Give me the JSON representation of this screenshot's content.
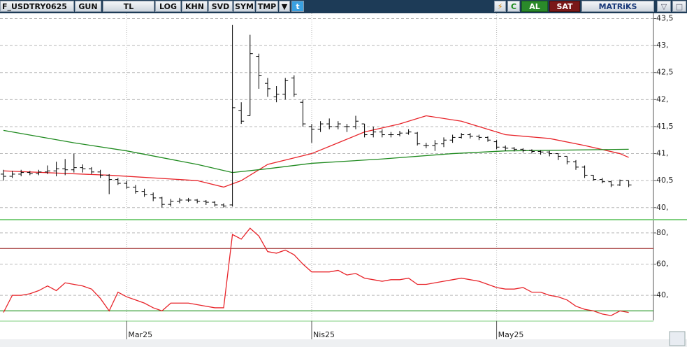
{
  "toolbar": {
    "symbol": "F_USDTRY0625",
    "period": "GUN",
    "currency": "TL",
    "buttons": [
      "LOG",
      "KHN",
      "SVD",
      "SYM",
      "TMP"
    ],
    "refresh": "C",
    "buy": "AL",
    "sell": "SAT",
    "brand": "MATRiKS"
  },
  "chart_data": [
    {
      "type": "ohlc",
      "grid": true,
      "ylim": [
        39.79,
        43.61
      ],
      "yticks": [
        {
          "value": 43.5,
          "label": "43,5"
        },
        {
          "value": 43,
          "label": "43,"
        },
        {
          "value": 42.5,
          "label": "42,5"
        },
        {
          "value": 42,
          "label": "42,"
        },
        {
          "value": 41.5,
          "label": "41,5"
        },
        {
          "value": 41,
          "label": "41,"
        },
        {
          "value": 40.5,
          "label": "40,5"
        },
        {
          "value": 40,
          "label": "40,"
        }
      ],
      "color": "#000000",
      "open": [
        40.62,
        40.58,
        40.62,
        40.65,
        40.63,
        40.66,
        40.68,
        40.72,
        40.7,
        40.74,
        40.72,
        40.66,
        40.6,
        40.52,
        40.45,
        40.38,
        40.3,
        40.24,
        40.18,
        40.06,
        40.12,
        40.14,
        40.14,
        40.12,
        40.1,
        40.05,
        40.05,
        41.8,
        41.7,
        42.8,
        42.3,
        42.05,
        42.1,
        42.4,
        41.95,
        41.5,
        41.45,
        41.55,
        41.5,
        41.5,
        41.5,
        41.55,
        41.35,
        41.4,
        41.35,
        41.35,
        41.38,
        41.38,
        41.15,
        41.15,
        41.18,
        41.25,
        41.3,
        41.35,
        41.32,
        41.3,
        41.22,
        41.12,
        41.1,
        41.08,
        41.06,
        41.04,
        41.03,
        41.0,
        40.95,
        40.85,
        40.75,
        40.6,
        40.52,
        40.48,
        40.42,
        40.5
      ],
      "high": [
        40.7,
        40.68,
        40.7,
        40.68,
        40.7,
        40.78,
        40.85,
        40.9,
        41.0,
        40.8,
        40.75,
        40.7,
        40.62,
        40.55,
        40.5,
        40.42,
        40.35,
        40.28,
        40.2,
        40.16,
        40.18,
        40.18,
        40.16,
        40.14,
        40.12,
        40.08,
        43.38,
        41.95,
        43.2,
        42.85,
        42.4,
        42.25,
        42.4,
        42.45,
        42.0,
        41.55,
        41.6,
        41.65,
        41.6,
        41.55,
        41.7,
        41.55,
        41.5,
        41.45,
        41.4,
        41.42,
        41.45,
        41.4,
        41.2,
        41.25,
        41.3,
        41.35,
        41.38,
        41.38,
        41.35,
        41.32,
        41.25,
        41.15,
        41.12,
        41.1,
        41.08,
        41.06,
        41.05,
        41.0,
        40.95,
        40.88,
        40.78,
        40.6,
        40.55,
        40.5,
        40.52,
        40.5
      ],
      "low": [
        40.5,
        40.55,
        40.58,
        40.6,
        40.6,
        40.62,
        40.58,
        40.6,
        40.65,
        40.65,
        40.62,
        40.55,
        40.25,
        40.42,
        40.35,
        40.26,
        40.2,
        40.12,
        40.0,
        40.02,
        40.08,
        40.1,
        40.08,
        40.05,
        40.02,
        40.0,
        40.02,
        41.55,
        41.7,
        42.2,
        42.05,
        41.95,
        42.0,
        42.05,
        41.5,
        41.2,
        41.4,
        41.45,
        41.45,
        41.4,
        41.45,
        41.3,
        41.3,
        41.3,
        41.3,
        41.32,
        41.35,
        41.15,
        41.1,
        41.05,
        41.12,
        41.2,
        41.28,
        41.28,
        41.25,
        41.22,
        41.08,
        41.05,
        41.04,
        41.02,
        41.0,
        40.98,
        40.95,
        40.88,
        40.8,
        40.7,
        40.55,
        40.5,
        40.45,
        40.38,
        40.4,
        40.38
      ],
      "close": [
        40.58,
        40.62,
        40.65,
        40.63,
        40.66,
        40.68,
        40.72,
        40.7,
        40.74,
        40.72,
        40.66,
        40.6,
        40.52,
        40.45,
        40.38,
        40.3,
        40.24,
        40.18,
        40.06,
        40.12,
        40.14,
        40.14,
        40.12,
        40.1,
        40.05,
        40.03,
        41.85,
        41.6,
        42.85,
        42.45,
        42.2,
        42.1,
        42.35,
        42.1,
        41.55,
        41.45,
        41.55,
        41.5,
        41.55,
        41.5,
        41.6,
        41.35,
        41.4,
        41.35,
        41.35,
        41.38,
        41.4,
        41.18,
        41.15,
        41.18,
        41.25,
        41.3,
        41.35,
        41.32,
        41.3,
        41.25,
        41.12,
        41.1,
        41.08,
        41.06,
        41.04,
        41.03,
        41.0,
        40.95,
        40.85,
        40.75,
        40.6,
        40.52,
        40.48,
        40.42,
        40.5,
        40.42
      ],
      "series": [
        {
          "color": "#e8242a",
          "x": [
            0,
            12,
            22,
            25,
            27,
            30,
            35,
            38,
            41,
            45,
            48,
            52,
            57,
            62,
            66,
            70,
            71
          ],
          "values": [
            40.68,
            40.6,
            40.5,
            40.38,
            40.5,
            40.8,
            41.0,
            41.2,
            41.4,
            41.55,
            41.7,
            41.6,
            41.35,
            41.28,
            41.15,
            41.0,
            40.93
          ]
        },
        {
          "color": "#1f8a1f",
          "x": [
            0,
            8,
            14,
            22,
            26,
            30,
            35,
            43,
            51,
            57,
            71
          ],
          "values": [
            41.43,
            41.2,
            41.05,
            40.8,
            40.65,
            40.72,
            40.82,
            40.9,
            41.0,
            41.05,
            41.08
          ]
        }
      ]
    },
    {
      "type": "line",
      "grid": true,
      "ylim": [
        23.9,
        86.7
      ],
      "yticks": [
        {
          "value": 80,
          "label": "80,"
        },
        {
          "value": 60,
          "label": "60,"
        },
        {
          "value": 40,
          "label": "40,"
        }
      ],
      "hlines": [
        {
          "value": 70,
          "color": "#a03030"
        },
        {
          "value": 30,
          "color": "#2e9a2e"
        }
      ],
      "categories": [
        null,
        null,
        null,
        null,
        null,
        null,
        null,
        null,
        null,
        null,
        null,
        null,
        null,
        null,
        "Mar25",
        null,
        null,
        null,
        null,
        null,
        null,
        null,
        null,
        null,
        null,
        null,
        null,
        null,
        null,
        null,
        null,
        null,
        null,
        null,
        null,
        "Nis25",
        null,
        null,
        null,
        null,
        null,
        null,
        null,
        null,
        null,
        null,
        null,
        null,
        null,
        null,
        null,
        null,
        null,
        null,
        null,
        null,
        "May25",
        null,
        null,
        null,
        null,
        null,
        null,
        null,
        null,
        null,
        null,
        null,
        null,
        null,
        null,
        null
      ],
      "series": [
        {
          "color": "#e8242a",
          "values": [
            29,
            40,
            40,
            41,
            43,
            46,
            43,
            48,
            47,
            46,
            44,
            38,
            30,
            42,
            39,
            37,
            35,
            32,
            30,
            35,
            35,
            35,
            34,
            33,
            32,
            32,
            79,
            76,
            83,
            78,
            68,
            67,
            69,
            66,
            60,
            55,
            55,
            55,
            56,
            53,
            54,
            51,
            50,
            49,
            50,
            50,
            51,
            47,
            47,
            48,
            49,
            50,
            51,
            50,
            49,
            47,
            45,
            44,
            44,
            45,
            42,
            42,
            40,
            39,
            37,
            33,
            31,
            30,
            28,
            27,
            30,
            29
          ]
        }
      ]
    }
  ]
}
